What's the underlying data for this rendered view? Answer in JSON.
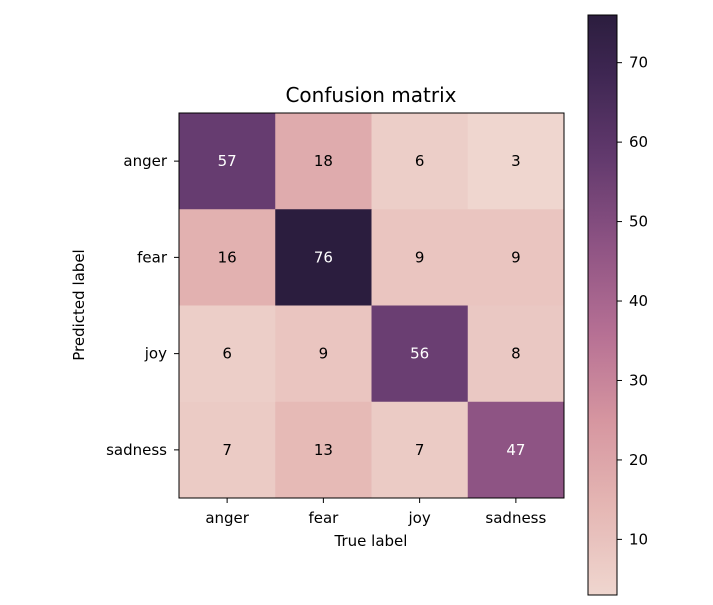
{
  "chart_data": {
    "type": "heatmap",
    "title": "Confusion matrix",
    "xlabel": "True label",
    "ylabel": "Predicted label",
    "x_categories": [
      "anger",
      "fear",
      "joy",
      "sadness"
    ],
    "y_categories": [
      "anger",
      "fear",
      "joy",
      "sadness"
    ],
    "values": [
      [
        57,
        18,
        6,
        3
      ],
      [
        16,
        76,
        9,
        9
      ],
      [
        6,
        9,
        56,
        8
      ],
      [
        7,
        13,
        7,
        47
      ]
    ],
    "colorbar": {
      "min": 3,
      "max": 76,
      "ticks": [
        10,
        20,
        30,
        40,
        50,
        60,
        70
      ]
    },
    "colors": {
      "low": "#efd6cf",
      "high": "#2b1d3e"
    }
  }
}
